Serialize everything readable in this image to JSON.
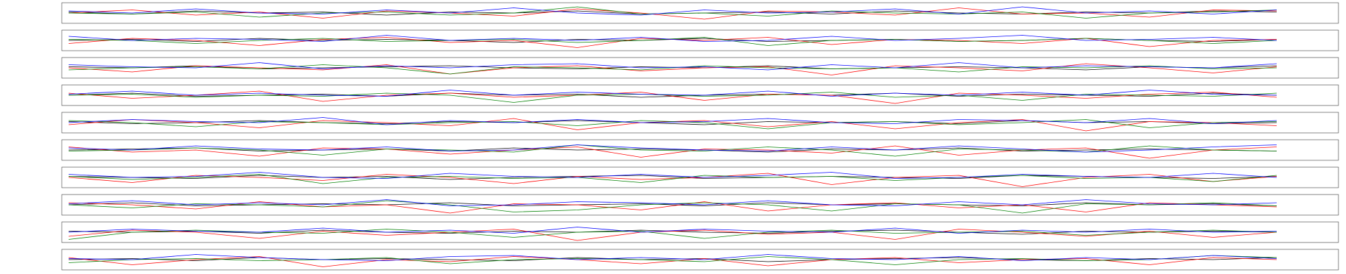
{
  "chart_data": [
    {
      "type": "line",
      "ylim": [
        -1,
        1
      ],
      "series": [
        {
          "color": "#000000",
          "values": [
            0.1,
            -0.1,
            0.2,
            0,
            0.1,
            -0.2,
            0.1,
            0,
            0.2,
            -0.1,
            0,
            0.1,
            -0.1,
            0.2,
            0,
            -0.1,
            0.1,
            0,
            0.2,
            0.1
          ]
        },
        {
          "color": "#ff0000",
          "values": [
            0,
            0.3,
            -0.2,
            0.1,
            -0.5,
            0.2,
            0,
            -0.3,
            0.4,
            0,
            -0.6,
            0.2,
            0.1,
            -0.2,
            0.5,
            -0.1,
            0,
            -0.4,
            0.3,
            0.2
          ]
        },
        {
          "color": "#008000",
          "values": [
            0,
            -0.1,
            0.1,
            -0.4,
            0,
            0.1,
            -0.2,
            0,
            0.6,
            -0.1,
            0,
            -0.3,
            0.2,
            0,
            -0.1,
            0.1,
            -0.5,
            0,
            0.1,
            0.3
          ]
        },
        {
          "color": "#0000ff",
          "values": [
            0.2,
            0,
            0.4,
            0,
            -0.1,
            0.3,
            0,
            0.5,
            0,
            -0.2,
            0.3,
            0,
            0.1,
            0.4,
            -0.1,
            0.6,
            0,
            0.2,
            -0.1,
            0.3
          ]
        }
      ]
    },
    {
      "type": "line",
      "ylim": [
        -1,
        1
      ],
      "series": [
        {
          "color": "#000000",
          "values": [
            0,
            0.1,
            -0.1,
            0.2,
            0,
            0.1,
            0,
            -0.2,
            0.1,
            0,
            0.2,
            -0.1,
            0,
            0.1,
            -0.1,
            0,
            0.2,
            0,
            -0.1,
            0.1
          ]
        },
        {
          "color": "#ff0000",
          "values": [
            -0.3,
            0.2,
            0,
            -0.5,
            0.1,
            0.3,
            -0.2,
            0,
            -0.7,
            0.2,
            0,
            0.3,
            -0.4,
            0.1,
            0,
            -0.3,
            0.2,
            -0.6,
            0,
            0.1
          ]
        },
        {
          "color": "#008000",
          "values": [
            0.1,
            0,
            -0.3,
            0,
            0.2,
            -0.1,
            0,
            0.1,
            -0.2,
            0,
            0.3,
            -0.5,
            0,
            0.1,
            -0.1,
            0,
            0.2,
            0,
            -0.3,
            0
          ]
        },
        {
          "color": "#0000ff",
          "values": [
            0.4,
            0,
            0.2,
            0.1,
            -0.1,
            0.5,
            0,
            0.2,
            0,
            0.3,
            -0.1,
            0,
            0.4,
            0,
            0.2,
            0.5,
            0,
            0.1,
            0.3,
            0
          ]
        }
      ]
    },
    {
      "type": "line",
      "ylim": [
        -1,
        1
      ],
      "series": [
        {
          "color": "#000000",
          "values": [
            0.1,
            0,
            0.2,
            -0.1,
            0,
            0.1,
            0.2,
            0,
            -0.1,
            0.1,
            0,
            0.2,
            -0.1,
            0,
            0.1,
            0,
            -0.2,
            0.1,
            0,
            0.2
          ]
        },
        {
          "color": "#ff0000",
          "values": [
            0,
            -0.4,
            0.2,
            0,
            -0.2,
            0.3,
            -0.6,
            0,
            0.2,
            -0.3,
            0,
            0.1,
            -0.7,
            0.2,
            0,
            -0.3,
            0.4,
            0,
            -0.5,
            0.1
          ]
        },
        {
          "color": "#008000",
          "values": [
            -0.2,
            0,
            0.1,
            -0.1,
            0.3,
            0,
            -0.6,
            0.1,
            0,
            -0.2,
            0.2,
            0,
            -0.1,
            0,
            -0.4,
            0.1,
            0,
            0.2,
            -0.1,
            0
          ]
        },
        {
          "color": "#0000ff",
          "values": [
            0.3,
            0.1,
            0,
            0.5,
            -0.1,
            0.2,
            0,
            0.3,
            0.4,
            0,
            0.1,
            -0.2,
            0.3,
            0,
            0.5,
            0,
            0.2,
            0.1,
            0,
            0.4
          ]
        }
      ]
    },
    {
      "type": "line",
      "ylim": [
        -1,
        1
      ],
      "series": [
        {
          "color": "#000000",
          "values": [
            0,
            0.2,
            -0.1,
            0,
            0.1,
            -0.1,
            0.2,
            0,
            0.1,
            -0.2,
            0,
            0.1,
            0,
            0.2,
            -0.1,
            0.1,
            0,
            -0.1,
            0.2,
            0
          ]
        },
        {
          "color": "#ff0000",
          "values": [
            0.2,
            -0.3,
            0,
            0.4,
            -0.6,
            0,
            0.2,
            -0.2,
            0,
            0.3,
            -0.5,
            0.1,
            0,
            -0.8,
            0.2,
            0,
            -0.3,
            0.1,
            0.3,
            -0.2
          ]
        },
        {
          "color": "#008000",
          "values": [
            0,
            0.1,
            -0.2,
            0,
            -0.1,
            0.2,
            0,
            -0.7,
            0,
            0.1,
            -0.1,
            0,
            0.3,
            -0.2,
            0,
            -0.5,
            0.1,
            0,
            -0.1,
            0.2
          ]
        },
        {
          "color": "#0000ff",
          "values": [
            0.1,
            0.4,
            0,
            0.2,
            0,
            -0.1,
            0.5,
            0,
            0.3,
            0.1,
            0,
            0.4,
            -0.1,
            0.2,
            0,
            0.3,
            0,
            0.5,
            0.1,
            0
          ]
        }
      ]
    },
    {
      "type": "line",
      "ylim": [
        -1,
        1
      ],
      "series": [
        {
          "color": "#000000",
          "values": [
            0.1,
            -0.1,
            0,
            0.2,
            0,
            -0.1,
            0.1,
            0,
            0.2,
            0,
            -0.2,
            0.1,
            0,
            0.1,
            -0.1,
            0.2,
            0,
            0.1,
            -0.1,
            0
          ]
        },
        {
          "color": "#ff0000",
          "values": [
            -0.2,
            0.3,
            0,
            -0.5,
            0.2,
            0,
            -0.3,
            0.4,
            -0.7,
            0,
            0.2,
            -0.4,
            0.1,
            -0.6,
            0,
            0.3,
            -0.8,
            0.1,
            0,
            -0.3
          ]
        },
        {
          "color": "#008000",
          "values": [
            0.2,
            0,
            -0.4,
            0.1,
            0,
            -0.2,
            0,
            0.1,
            -0.3,
            0.2,
            0,
            -0.6,
            0,
            0.1,
            -0.2,
            0,
            0.3,
            -0.5,
            0,
            0.1
          ]
        },
        {
          "color": "#0000ff",
          "values": [
            0,
            0.3,
            0.1,
            0,
            0.5,
            -0.2,
            0.2,
            0,
            0.3,
            0,
            0.1,
            0.4,
            0,
            -0.1,
            0.3,
            0.2,
            0,
            0.4,
            -0.1,
            0.2
          ]
        }
      ]
    },
    {
      "type": "line",
      "ylim": [
        -1,
        1
      ],
      "series": [
        {
          "color": "#000000",
          "values": [
            0,
            0.1,
            0.2,
            -0.1,
            0,
            0.1,
            -0.1,
            0.2,
            0,
            0.1,
            0,
            -0.2,
            0.1,
            0,
            0.2,
            -0.1,
            0,
            0.1,
            0,
            -0.1
          ]
        },
        {
          "color": "#ff0000",
          "values": [
            0.3,
            -0.2,
            0,
            -0.6,
            0.2,
            0.1,
            -0.4,
            0,
            0.3,
            -0.7,
            0.1,
            0,
            -0.3,
            0.4,
            -0.5,
            0,
            0.2,
            -0.8,
            0,
            0.3
          ]
        },
        {
          "color": "#008000",
          "values": [
            -0.1,
            0,
            0.2,
            0,
            -0.5,
            0.1,
            0,
            -0.2,
            0.5,
            0,
            -0.1,
            0.3,
            0,
            -0.6,
            0.1,
            0,
            -0.2,
            0.4,
            0,
            -0.1
          ]
        },
        {
          "color": "#0000ff",
          "values": [
            0.2,
            0,
            0.4,
            0.1,
            0,
            0.3,
            -0.1,
            0,
            0.5,
            0.2,
            0,
            -0.1,
            0.3,
            0,
            0.4,
            0.1,
            -0.2,
            0,
            0.3,
            0.5
          ]
        }
      ]
    },
    {
      "type": "line",
      "ylim": [
        -1,
        1
      ],
      "series": [
        {
          "color": "#000000",
          "values": [
            0.1,
            0,
            -0.1,
            0.2,
            0,
            0.1,
            -0.2,
            0,
            0.1,
            0.2,
            -0.1,
            0,
            0.1,
            0,
            -0.1,
            0.2,
            0.1,
            0,
            -0.1,
            0.1
          ]
        },
        {
          "color": "#ff0000",
          "values": [
            0,
            -0.5,
            0.2,
            0,
            -0.3,
            0.3,
            0,
            -0.6,
            0.1,
            -0.2,
            0,
            0.4,
            -0.7,
            0,
            0.2,
            -0.9,
            0,
            0.3,
            -0.4,
            0.1
          ]
        },
        {
          "color": "#008000",
          "values": [
            0.1,
            -0.2,
            0,
            0.3,
            -0.6,
            0,
            0.1,
            -0.1,
            0,
            -0.5,
            0.2,
            0,
            0.1,
            -0.3,
            0,
            0.2,
            -0.1,
            0,
            -0.4,
            0.2
          ]
        },
        {
          "color": "#0000ff",
          "values": [
            0.3,
            0,
            0.1,
            0.5,
            0,
            -0.1,
            0.4,
            0.1,
            0,
            0.3,
            0,
            0.2,
            0.5,
            -0.1,
            0,
            0.3,
            0.1,
            0,
            0.4,
            0
          ]
        }
      ]
    },
    {
      "type": "line",
      "ylim": [
        -1,
        1
      ],
      "series": [
        {
          "color": "#000000",
          "values": [
            0,
            0.2,
            -0.1,
            0,
            0.1,
            0,
            0.2,
            -0.1,
            0,
            0.1,
            -0.1,
            0.2,
            0,
            0.1,
            0,
            -0.1,
            0.2,
            0,
            0.1,
            -0.1
          ]
        },
        {
          "color": "#ff0000",
          "values": [
            0.2,
            0,
            -0.4,
            0.3,
            -0.2,
            0,
            -0.8,
            0.1,
            0,
            -0.5,
            0.3,
            -0.6,
            0,
            0.2,
            -0.3,
            0,
            -0.7,
            0.2,
            0,
            -0.2
          ]
        },
        {
          "color": "#008000",
          "values": [
            0,
            -0.3,
            0.1,
            0,
            -0.2,
            0.4,
            0,
            -0.7,
            -0.5,
            0,
            0.2,
            0,
            -0.6,
            0.1,
            0,
            -0.8,
            0.1,
            0,
            0.2,
            -0.1
          ]
        },
        {
          "color": "#0000ff",
          "values": [
            0.1,
            0.4,
            0,
            0.2,
            0,
            0.5,
            -0.1,
            0,
            0.3,
            0.2,
            0,
            0.4,
            0,
            -0.1,
            0.3,
            0,
            0.5,
            0.1,
            0,
            0.2
          ]
        }
      ]
    },
    {
      "type": "line",
      "ylim": [
        -1,
        1
      ],
      "series": [
        {
          "color": "#000000",
          "values": [
            0.1,
            0,
            0.1,
            -0.1,
            0.2,
            0,
            -0.1,
            0.1,
            0,
            0.2,
            0,
            -0.1,
            0.1,
            0.2,
            0,
            -0.2,
            0.1,
            0,
            0.1,
            0
          ]
        },
        {
          "color": "#ff0000",
          "values": [
            -0.4,
            0.2,
            0,
            -0.6,
            0.1,
            -0.3,
            0,
            0.3,
            -0.8,
            0,
            0.2,
            -0.2,
            0,
            -0.7,
            0.3,
            0,
            -0.4,
            0.1,
            -0.5,
            0
          ]
        },
        {
          "color": "#008000",
          "values": [
            -0.7,
            0,
            0.2,
            0,
            -0.1,
            0.3,
            0,
            -0.5,
            0,
            0.1,
            -0.6,
            0,
            0.2,
            -0.1,
            0,
            0.1,
            -0.3,
            0,
            0.2,
            0
          ]
        },
        {
          "color": "#0000ff",
          "values": [
            0,
            0.3,
            0.1,
            0,
            0.4,
            0,
            0.2,
            -0.1,
            0.5,
            0,
            0.3,
            0.1,
            0,
            0.4,
            -0.1,
            0.2,
            0,
            0.3,
            0,
            0.1
          ]
        }
      ]
    },
    {
      "type": "line",
      "ylim": [
        -1,
        1
      ],
      "series": [
        {
          "color": "#000000",
          "values": [
            0,
            0.1,
            -0.1,
            0.2,
            0,
            0.1,
            0,
            -0.1,
            0.2,
            0,
            0.1,
            -0.2,
            0,
            0.1,
            0.2,
            0,
            -0.1,
            0.1,
            0,
            0.2
          ]
        },
        {
          "color": "#ff0000",
          "values": [
            0.2,
            -0.5,
            0,
            0.3,
            -0.7,
            0,
            -0.2,
            0.3,
            0,
            -0.4,
            0.1,
            -0.6,
            0,
            0.2,
            -0.3,
            0,
            0.1,
            -0.5,
            0.2,
            0
          ]
        },
        {
          "color": "#008000",
          "values": [
            -0.3,
            0,
            0.1,
            -0.1,
            0,
            0.2,
            -0.4,
            0,
            0.1,
            0,
            -0.2,
            0.3,
            0,
            -0.5,
            0,
            0.1,
            -0.1,
            0,
            0.4,
            0.2
          ]
        },
        {
          "color": "#0000ff",
          "values": [
            0.1,
            0,
            0.5,
            0.2,
            0,
            -0.1,
            0.3,
            0.4,
            0,
            0.2,
            0,
            0.5,
            0.1,
            0,
            0.3,
            -0.1,
            0.2,
            0,
            0.4,
            0.1
          ]
        }
      ]
    }
  ]
}
